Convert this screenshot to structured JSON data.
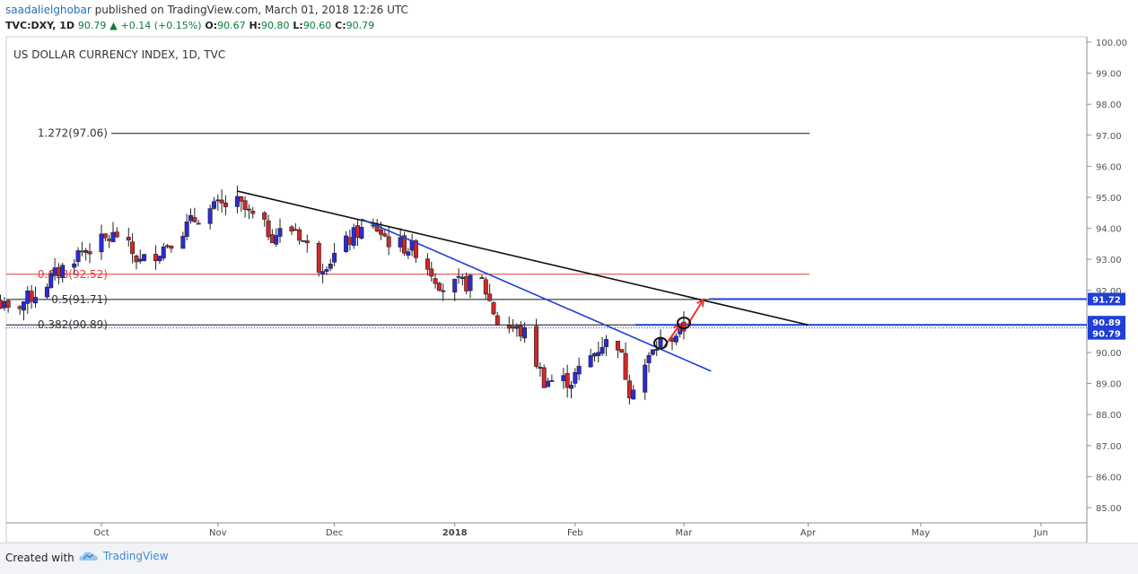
{
  "header": {
    "author": "saadalielghobar",
    "published": "published on TradingView.com, March 01, 2018 12:26 UTC",
    "symbol": "TVC:DXY, 1D",
    "last": "90.79",
    "change": "+0.14 (+0.15%)",
    "o_label": "O:",
    "o": "90.67",
    "h_label": "H:",
    "h": "90.80",
    "l_label": "L:",
    "l": "90.60",
    "c_label": "C:",
    "c": "90.79"
  },
  "footer": {
    "created_with": "Created with",
    "brand": "TradingView"
  },
  "colors": {
    "up": "#2b2bd6",
    "down": "#d12727",
    "blue_line": "#1f3fd6",
    "fib_red": "#e53935",
    "price_tag": "#1f3fd6"
  },
  "chart_data": {
    "type": "candlestick",
    "title": "US DOLLAR CURRENCY INDEX, 1D, TVC",
    "ylim": [
      84.5,
      100.2
    ],
    "y_ticks": [
      "100.00",
      "99.00",
      "98.00",
      "97.00",
      "96.00",
      "95.00",
      "94.00",
      "93.00",
      "92.00",
      "91.00",
      "90.00",
      "89.00",
      "88.00",
      "87.00",
      "86.00",
      "85.00"
    ],
    "x_ticks": [
      {
        "label": "Oct",
        "date": "2017-10-02"
      },
      {
        "label": "Nov",
        "date": "2017-11-01"
      },
      {
        "label": "Dec",
        "date": "2017-12-01"
      },
      {
        "label": "2018",
        "date": "2018-01-01"
      },
      {
        "label": "Feb",
        "date": "2018-02-01"
      },
      {
        "label": "Mar",
        "date": "2018-03-01"
      },
      {
        "label": "Apr",
        "date": "2018-04-02"
      },
      {
        "label": "May",
        "date": "2018-05-01"
      },
      {
        "label": "Jun",
        "date": "2018-06-01"
      }
    ],
    "waypoints": [
      [
        "2017-09-05",
        91.7
      ],
      [
        "2017-09-08",
        91.3
      ],
      [
        "2017-09-15",
        91.9
      ],
      [
        "2017-09-26",
        93.2
      ],
      [
        "2017-10-06",
        93.8
      ],
      [
        "2017-10-12",
        92.9
      ],
      [
        "2017-10-17",
        93.3
      ],
      [
        "2017-10-27",
        94.4
      ],
      [
        "2017-11-01",
        94.7
      ],
      [
        "2017-11-06",
        94.8
      ],
      [
        "2017-11-15",
        93.8
      ],
      [
        "2017-11-21",
        94.0
      ],
      [
        "2017-11-27",
        92.8
      ],
      [
        "2017-11-30",
        93.0
      ],
      [
        "2017-12-07",
        93.9
      ],
      [
        "2017-12-12",
        94.0
      ],
      [
        "2017-12-15",
        93.6
      ],
      [
        "2017-12-22",
        93.3
      ],
      [
        "2017-12-29",
        92.1
      ],
      [
        "2018-01-08",
        92.3
      ],
      [
        "2018-01-12",
        91.0
      ],
      [
        "2018-01-19",
        90.6
      ],
      [
        "2018-01-24",
        89.1
      ],
      [
        "2018-01-31",
        89.1
      ],
      [
        "2018-02-08",
        90.3
      ],
      [
        "2018-02-12",
        90.3
      ],
      [
        "2018-02-15",
        88.8
      ],
      [
        "2018-02-22",
        90.2
      ],
      [
        "2018-02-28",
        90.7
      ],
      [
        "2018-03-01",
        90.79
      ]
    ],
    "trendlines": [
      {
        "name": "black-trendline",
        "x0": "2017-11-06",
        "y0": 95.2,
        "x1": "2018-04-02",
        "y1": 90.89
      },
      {
        "name": "blue-trendline",
        "x0": "2017-12-08",
        "y0": 94.3,
        "x1": "2018-03-08",
        "y1": 89.4
      }
    ],
    "horizontal_levels": [
      {
        "label": "1.272(97.06)",
        "value": 97.06,
        "color": "black"
      },
      {
        "label": "0.618(92.52)",
        "value": 92.52,
        "color": "red"
      },
      {
        "label": "0.5(91.71)",
        "value": 91.71,
        "color": "black"
      },
      {
        "label": "0.382(90.89)",
        "value": 90.89,
        "color": "black"
      }
    ],
    "price_tags": [
      {
        "label": "91.72",
        "value": 91.72
      },
      {
        "label": "90.89",
        "value": 90.89
      },
      {
        "label": "90.79",
        "value": 90.79
      }
    ],
    "annotations": [
      {
        "name": "projection-arrow-1",
        "from": [
          "2018-02-24",
          90.2
        ],
        "to": [
          "2018-02-28",
          90.9
        ]
      },
      {
        "name": "projection-arrow-2",
        "from": [
          "2018-03-02",
          90.9
        ],
        "to": [
          "2018-03-06",
          91.7
        ]
      },
      {
        "name": "breakout-circle-1",
        "at": [
          "2018-02-23",
          90.3
        ]
      },
      {
        "name": "breakout-circle-2",
        "at": [
          "2018-03-01",
          90.95
        ]
      }
    ]
  }
}
